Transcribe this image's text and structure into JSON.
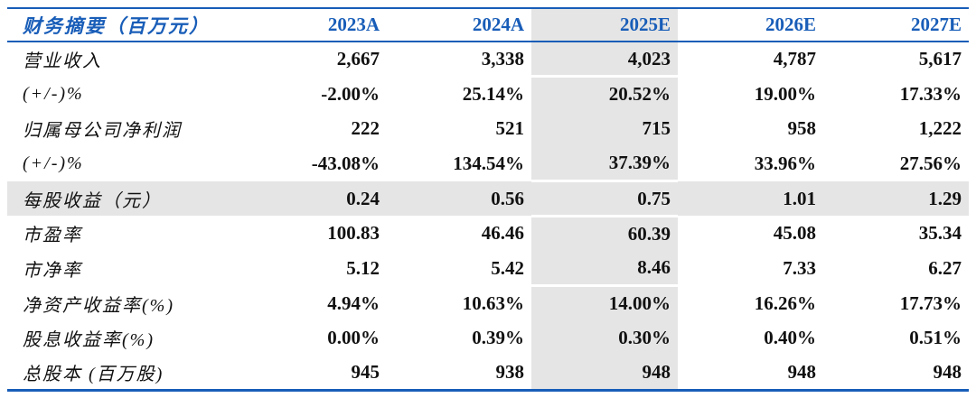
{
  "table": {
    "header": {
      "label": "财务摘要（百万元）",
      "columns": [
        "2023A",
        "2024A",
        "2025E",
        "2026E",
        "2027E"
      ]
    },
    "highlight_column": "2025E",
    "highlight_row_index": 4,
    "rows": [
      {
        "label": "营业收入",
        "values": [
          "2,667",
          "3,338",
          "4,023",
          "4,787",
          "5,617"
        ]
      },
      {
        "label": "(+/-)%",
        "values": [
          "-2.00%",
          "25.14%",
          "20.52%",
          "19.00%",
          "17.33%"
        ]
      },
      {
        "label": "归属母公司净利润",
        "values": [
          "222",
          "521",
          "715",
          "958",
          "1,222"
        ]
      },
      {
        "label": "(+/-)%",
        "values": [
          "-43.08%",
          "134.54%",
          "37.39%",
          "33.96%",
          "27.56%"
        ]
      },
      {
        "label": "每股收益（元）",
        "values": [
          "0.24",
          "0.56",
          "0.75",
          "1.01",
          "1.29"
        ]
      },
      {
        "label": "市盈率",
        "values": [
          "100.83",
          "46.46",
          "60.39",
          "45.08",
          "35.34"
        ]
      },
      {
        "label": "市净率",
        "values": [
          "5.12",
          "5.42",
          "8.46",
          "7.33",
          "6.27"
        ]
      },
      {
        "label": "净资产收益率(%)",
        "values": [
          "4.94%",
          "10.63%",
          "14.00%",
          "16.26%",
          "17.73%"
        ]
      },
      {
        "label": "股息收益率(%)",
        "values": [
          "0.00%",
          "0.39%",
          "0.30%",
          "0.40%",
          "0.51%"
        ]
      },
      {
        "label": "总股本 (百万股)",
        "values": [
          "945",
          "938",
          "948",
          "948",
          "948"
        ]
      }
    ],
    "colors": {
      "accent_blue": "#185DB8",
      "highlight_gray": "#E5E5E5"
    }
  }
}
